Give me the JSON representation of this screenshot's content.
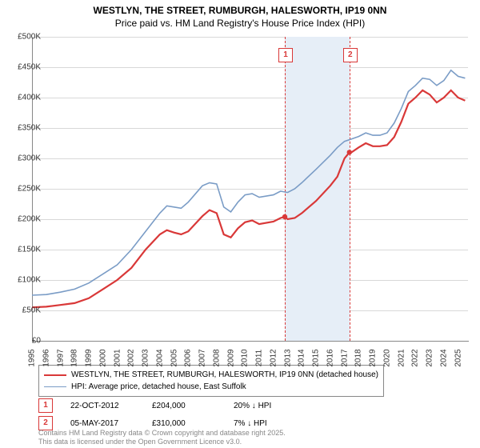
{
  "title_line1": "WESTLYN, THE STREET, RUMBURGH, HALESWORTH, IP19 0NN",
  "title_line2": "Price paid vs. HM Land Registry's House Price Index (HPI)",
  "chart": {
    "type": "line",
    "x_years": [
      1995,
      1996,
      1997,
      1998,
      1999,
      2000,
      2001,
      2002,
      2003,
      2004,
      2005,
      2006,
      2007,
      2008,
      2009,
      2010,
      2011,
      2012,
      2013,
      2014,
      2015,
      2016,
      2017,
      2018,
      2019,
      2020,
      2021,
      2022,
      2023,
      2024,
      2025
    ],
    "ylim": [
      0,
      500000
    ],
    "ytick_step": 50000,
    "ytick_labels": [
      "£0",
      "£50K",
      "£100K",
      "£150K",
      "£200K",
      "£250K",
      "£300K",
      "£350K",
      "£400K",
      "£450K",
      "£500K"
    ],
    "grid_color": "#d8d8d8",
    "background_color": "#ffffff",
    "band_color": "#e6eef7",
    "band_start_year": 2012.8,
    "band_end_year": 2017.35,
    "flag_positions": [
      {
        "n": "1",
        "year": 2012.8,
        "top_offset": 14
      },
      {
        "n": "2",
        "year": 2017.35,
        "top_offset": 14
      }
    ],
    "series": [
      {
        "name": "price_paid",
        "color": "#d93838",
        "width": 2.2,
        "points": [
          [
            1995,
            55000
          ],
          [
            1996,
            56000
          ],
          [
            1997,
            59000
          ],
          [
            1998,
            62000
          ],
          [
            1999,
            70000
          ],
          [
            2000,
            85000
          ],
          [
            2001,
            100000
          ],
          [
            2002,
            120000
          ],
          [
            2003,
            150000
          ],
          [
            2004,
            175000
          ],
          [
            2004.5,
            182000
          ],
          [
            2005,
            178000
          ],
          [
            2005.5,
            175000
          ],
          [
            2006,
            180000
          ],
          [
            2007,
            205000
          ],
          [
            2007.5,
            215000
          ],
          [
            2008,
            210000
          ],
          [
            2008.5,
            175000
          ],
          [
            2009,
            170000
          ],
          [
            2009.5,
            185000
          ],
          [
            2010,
            195000
          ],
          [
            2010.5,
            198000
          ],
          [
            2011,
            192000
          ],
          [
            2012,
            196000
          ],
          [
            2012.5,
            202000
          ],
          [
            2012.8,
            204000
          ],
          [
            2013,
            200000
          ],
          [
            2013.5,
            202000
          ],
          [
            2014,
            210000
          ],
          [
            2015,
            230000
          ],
          [
            2016,
            255000
          ],
          [
            2016.5,
            270000
          ],
          [
            2017,
            300000
          ],
          [
            2017.35,
            310000
          ],
          [
            2017.5,
            310000
          ],
          [
            2018,
            318000
          ],
          [
            2018.5,
            325000
          ],
          [
            2019,
            320000
          ],
          [
            2019.5,
            320000
          ],
          [
            2020,
            322000
          ],
          [
            2020.5,
            335000
          ],
          [
            2021,
            360000
          ],
          [
            2021.5,
            390000
          ],
          [
            2022,
            400000
          ],
          [
            2022.5,
            412000
          ],
          [
            2023,
            405000
          ],
          [
            2023.5,
            392000
          ],
          [
            2024,
            400000
          ],
          [
            2024.5,
            412000
          ],
          [
            2025,
            400000
          ],
          [
            2025.5,
            395000
          ]
        ]
      },
      {
        "name": "hpi",
        "color": "#7a9cc6",
        "width": 1.6,
        "points": [
          [
            1995,
            75000
          ],
          [
            1996,
            76000
          ],
          [
            1997,
            80000
          ],
          [
            1998,
            85000
          ],
          [
            1999,
            95000
          ],
          [
            2000,
            110000
          ],
          [
            2001,
            125000
          ],
          [
            2002,
            150000
          ],
          [
            2003,
            180000
          ],
          [
            2004,
            210000
          ],
          [
            2004.5,
            222000
          ],
          [
            2005,
            220000
          ],
          [
            2005.5,
            218000
          ],
          [
            2006,
            228000
          ],
          [
            2007,
            255000
          ],
          [
            2007.5,
            260000
          ],
          [
            2008,
            258000
          ],
          [
            2008.5,
            220000
          ],
          [
            2009,
            212000
          ],
          [
            2009.5,
            228000
          ],
          [
            2010,
            240000
          ],
          [
            2010.5,
            242000
          ],
          [
            2011,
            236000
          ],
          [
            2012,
            240000
          ],
          [
            2012.5,
            246000
          ],
          [
            2013,
            244000
          ],
          [
            2013.5,
            250000
          ],
          [
            2014,
            260000
          ],
          [
            2015,
            282000
          ],
          [
            2016,
            305000
          ],
          [
            2016.5,
            318000
          ],
          [
            2017,
            328000
          ],
          [
            2017.5,
            332000
          ],
          [
            2018,
            336000
          ],
          [
            2018.5,
            342000
          ],
          [
            2019,
            338000
          ],
          [
            2019.5,
            338000
          ],
          [
            2020,
            342000
          ],
          [
            2020.5,
            358000
          ],
          [
            2021,
            382000
          ],
          [
            2021.5,
            410000
          ],
          [
            2022,
            420000
          ],
          [
            2022.5,
            432000
          ],
          [
            2023,
            430000
          ],
          [
            2023.5,
            420000
          ],
          [
            2024,
            428000
          ],
          [
            2024.5,
            445000
          ],
          [
            2025,
            435000
          ],
          [
            2025.5,
            432000
          ]
        ]
      }
    ],
    "sale_markers": [
      {
        "year": 2012.8,
        "price": 204000
      },
      {
        "year": 2017.35,
        "price": 310000
      }
    ],
    "marker_color": "#d93838"
  },
  "legend": {
    "items": [
      {
        "color": "#d93838",
        "width": 2.2,
        "label": "WESTLYN, THE STREET, RUMBURGH, HALESWORTH, IP19 0NN (detached house)"
      },
      {
        "color": "#7a9cc6",
        "width": 1.6,
        "label": "HPI: Average price, detached house, East Suffolk"
      }
    ]
  },
  "sales": [
    {
      "n": "1",
      "date": "22-OCT-2012",
      "price": "£204,000",
      "delta": "20% ↓ HPI"
    },
    {
      "n": "2",
      "date": "05-MAY-2017",
      "price": "£310,000",
      "delta": "7%  ↓ HPI"
    }
  ],
  "footer_line1": "Contains HM Land Registry data © Crown copyright and database right 2025.",
  "footer_line2": "This data is licensed under the Open Government Licence v3.0."
}
